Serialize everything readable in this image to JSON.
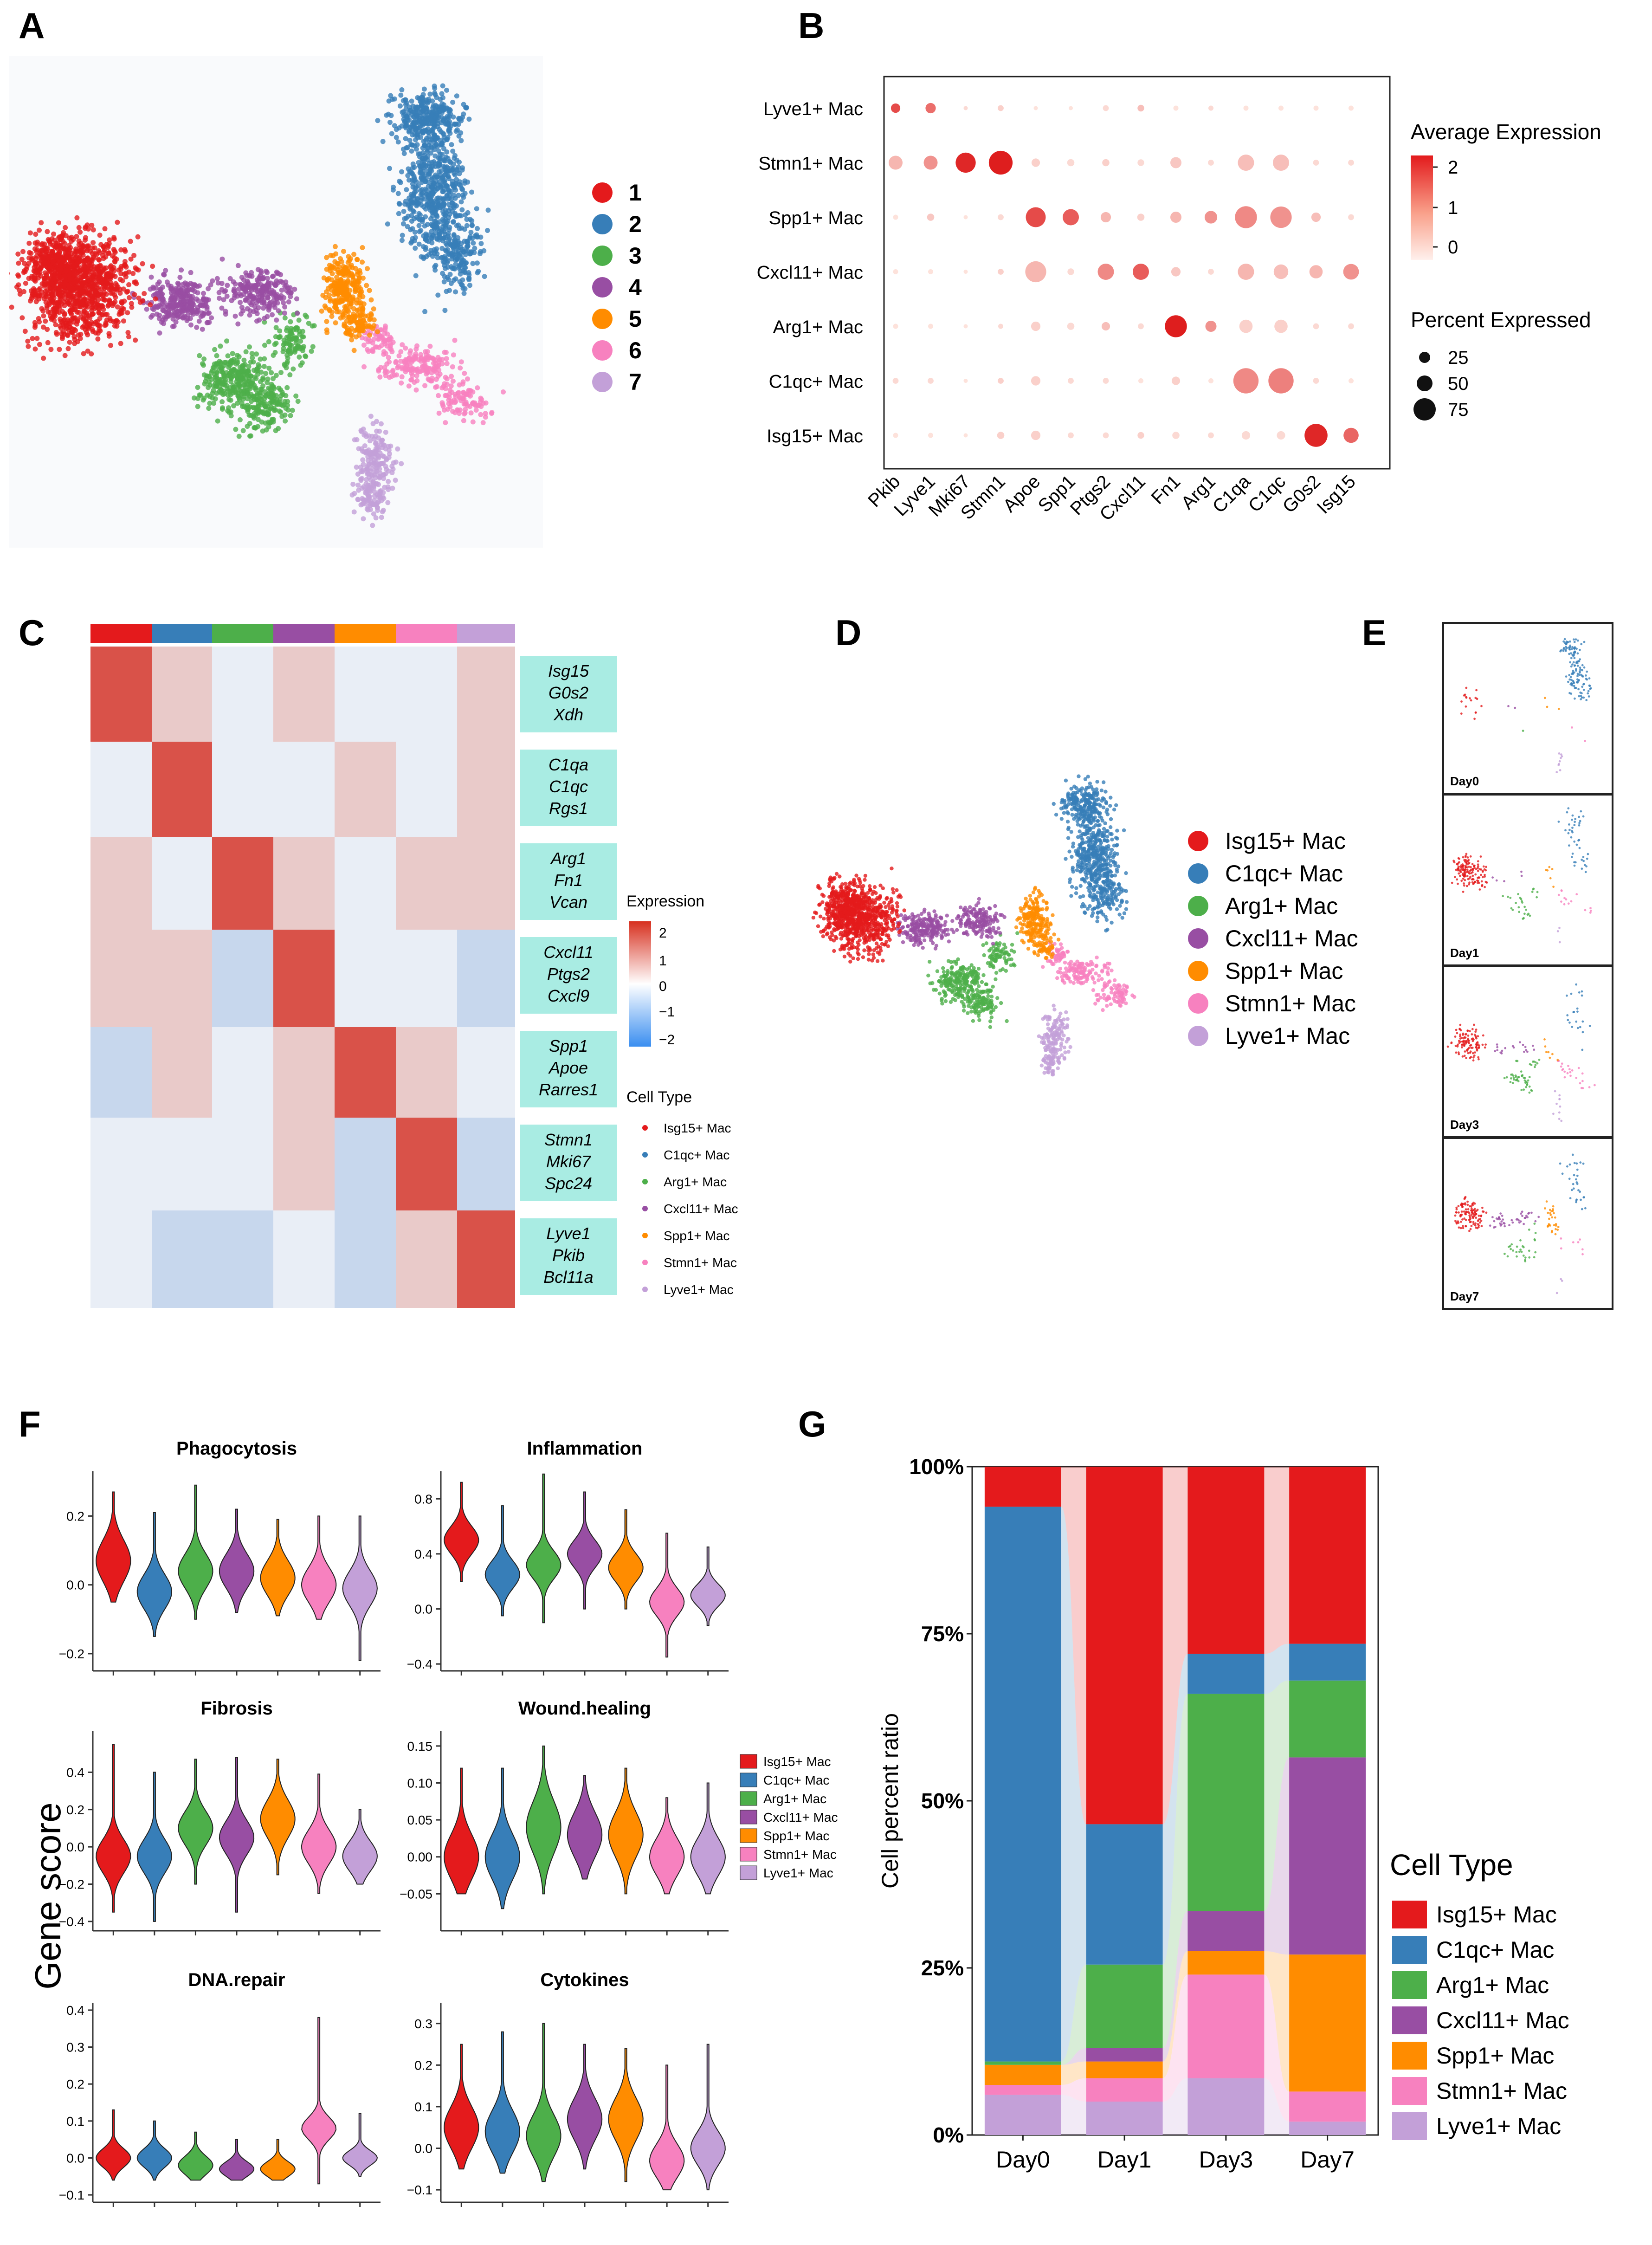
{
  "colors": {
    "Isg15": "#e41a1c",
    "C1qc": "#377eb8",
    "Arg1": "#4daf4a",
    "Cxcl11": "#984ea3",
    "Spp1": "#ff8c00",
    "Stmn1": "#f781bf",
    "Lyve1": "#c3a0d8",
    "cyan_box": "#a9ece3",
    "dot_high": "#e31a1c",
    "dot_low": "#fee5d9"
  },
  "cell_types": [
    "Isg15+ Mac",
    "C1qc+ Mac",
    "Arg1+ Mac",
    "Cxcl11+ Mac",
    "Spp1+ Mac",
    "Stmn1+ Mac",
    "Lyve1+ Mac"
  ],
  "panels": {
    "A": {
      "letter": "A",
      "legend": [
        "1",
        "2",
        "3",
        "4",
        "5",
        "6",
        "7"
      ]
    },
    "B": {
      "letter": "B",
      "genes": [
        "Pkib",
        "Lyve1",
        "Mki67",
        "Stmn1",
        "Apoe",
        "Spp1",
        "Ptgs2",
        "Cxcl11",
        "Fn1",
        "Arg1",
        "C1qa",
        "C1qc",
        "G0s2",
        "Isg15"
      ],
      "rows": [
        "Lyve1+ Mac",
        "Stmn1+ Mac",
        "Spp1+ Mac",
        "Cxcl11+ Mac",
        "Arg1+ Mac",
        "C1qc+ Mac",
        "Isg15+ Mac"
      ],
      "avg_expression_title": "Average Expression",
      "avg_expression_ticks": [
        "2",
        "1",
        "0"
      ],
      "percent_title": "Percent Expressed",
      "percent_ticks": [
        "25",
        "50",
        "75"
      ],
      "dots": [
        [
          [
            1.8,
            10
          ],
          [
            1.4,
            12
          ],
          [
            0.2,
            2
          ],
          [
            0.3,
            4
          ],
          [
            0.1,
            2
          ],
          [
            0.1,
            2
          ],
          [
            0.2,
            4
          ],
          [
            0.5,
            5
          ],
          [
            0.1,
            3
          ],
          [
            0.2,
            3
          ],
          [
            0.1,
            3
          ],
          [
            0.1,
            3
          ],
          [
            0.1,
            3
          ],
          [
            0.1,
            3
          ]
        ],
        [
          [
            0.6,
            22
          ],
          [
            1.0,
            22
          ],
          [
            2.2,
            46
          ],
          [
            2.3,
            64
          ],
          [
            0.3,
            8
          ],
          [
            0.2,
            6
          ],
          [
            0.3,
            6
          ],
          [
            0.2,
            5
          ],
          [
            0.4,
            14
          ],
          [
            0.2,
            4
          ],
          [
            0.5,
            30
          ],
          [
            0.5,
            30
          ],
          [
            0.2,
            4
          ],
          [
            0.2,
            4
          ]
        ],
        [
          [
            0.1,
            3
          ],
          [
            0.4,
            6
          ],
          [
            0.1,
            2
          ],
          [
            0.2,
            4
          ],
          [
            1.8,
            45
          ],
          [
            1.6,
            30
          ],
          [
            0.6,
            12
          ],
          [
            0.3,
            6
          ],
          [
            0.6,
            14
          ],
          [
            1.0,
            18
          ],
          [
            1.1,
            55
          ],
          [
            1.0,
            52
          ],
          [
            0.5,
            10
          ],
          [
            0.2,
            4
          ]
        ],
        [
          [
            0.1,
            3
          ],
          [
            0.1,
            3
          ],
          [
            0.1,
            2
          ],
          [
            0.3,
            4
          ],
          [
            0.6,
            50
          ],
          [
            0.2,
            5
          ],
          [
            1.1,
            30
          ],
          [
            1.6,
            30
          ],
          [
            0.4,
            10
          ],
          [
            0.2,
            4
          ],
          [
            0.6,
            30
          ],
          [
            0.5,
            24
          ],
          [
            0.6,
            20
          ],
          [
            1.0,
            28
          ]
        ],
        [
          [
            0.1,
            3
          ],
          [
            0.1,
            3
          ],
          [
            0.1,
            2
          ],
          [
            0.2,
            3
          ],
          [
            0.3,
            10
          ],
          [
            0.2,
            6
          ],
          [
            0.5,
            8
          ],
          [
            0.2,
            4
          ],
          [
            2.3,
            55
          ],
          [
            1.0,
            14
          ],
          [
            0.3,
            20
          ],
          [
            0.3,
            20
          ],
          [
            0.2,
            4
          ],
          [
            0.2,
            4
          ]
        ],
        [
          [
            0.2,
            4
          ],
          [
            0.2,
            4
          ],
          [
            0.1,
            2
          ],
          [
            0.3,
            4
          ],
          [
            0.3,
            10
          ],
          [
            0.2,
            4
          ],
          [
            0.2,
            4
          ],
          [
            0.1,
            3
          ],
          [
            0.3,
            8
          ],
          [
            0.1,
            3
          ],
          [
            1.1,
            72
          ],
          [
            1.2,
            72
          ],
          [
            0.2,
            4
          ],
          [
            0.1,
            3
          ]
        ],
        [
          [
            0.1,
            3
          ],
          [
            0.1,
            3
          ],
          [
            0.1,
            2
          ],
          [
            0.3,
            6
          ],
          [
            0.3,
            10
          ],
          [
            0.2,
            4
          ],
          [
            0.2,
            4
          ],
          [
            0.3,
            5
          ],
          [
            0.2,
            6
          ],
          [
            0.2,
            4
          ],
          [
            0.2,
            8
          ],
          [
            0.2,
            8
          ],
          [
            2.2,
            60
          ],
          [
            1.5,
            26
          ]
        ]
      ]
    },
    "C": {
      "letter": "C",
      "gene_boxes": [
        [
          "Isg15",
          "G0s2",
          "Xdh"
        ],
        [
          "C1qa",
          "C1qc",
          "Rgs1"
        ],
        [
          "Arg1",
          "Fn1",
          "Vcan"
        ],
        [
          "Cxcl11",
          "Ptgs2",
          "Cxcl9"
        ],
        [
          "Spp1",
          "Apoe",
          "Rarres1"
        ],
        [
          "Stmn1",
          "Mki67",
          "Spc24"
        ],
        [
          "Lyve1",
          "Pkib",
          "Bcl11a"
        ]
      ],
      "expression_title": "Expression",
      "expression_ticks": [
        "2",
        "1",
        "0",
        "−1",
        "−2"
      ],
      "celltype_title": "Cell Type"
    },
    "D": {
      "letter": "D"
    },
    "E": {
      "letter": "E",
      "days": [
        "Day0",
        "Day1",
        "Day3",
        "Day7"
      ]
    },
    "F": {
      "letter": "F",
      "ylabel": "Gene score",
      "plots": [
        {
          "title": "Phagocytosis",
          "ticks": [
            "0.2",
            "0.0",
            "−0.2"
          ],
          "tick_values": [
            0.2,
            0.0,
            -0.2
          ],
          "ymin": -0.25,
          "ymax": 0.33,
          "violins": [
            [
              0.07,
              -0.05,
              0.27,
              0.06
            ],
            [
              -0.02,
              -0.15,
              0.21,
              0.05
            ],
            [
              0.04,
              -0.1,
              0.29,
              0.05
            ],
            [
              0.04,
              -0.08,
              0.22,
              0.05
            ],
            [
              0.02,
              -0.09,
              0.19,
              0.05
            ],
            [
              0.0,
              -0.1,
              0.2,
              0.05
            ],
            [
              -0.01,
              -0.22,
              0.2,
              0.05
            ]
          ]
        },
        {
          "title": "Inflammation",
          "ticks": [
            "0.8",
            "0.4",
            "0.0",
            "−0.4"
          ],
          "tick_values": [
            0.8,
            0.4,
            0.0,
            -0.4
          ],
          "ymin": -0.45,
          "ymax": 1.0,
          "violins": [
            [
              0.5,
              0.2,
              0.92,
              0.1
            ],
            [
              0.25,
              -0.05,
              0.75,
              0.1
            ],
            [
              0.32,
              -0.1,
              0.98,
              0.1
            ],
            [
              0.4,
              0.0,
              0.85,
              0.1
            ],
            [
              0.3,
              0.0,
              0.72,
              0.1
            ],
            [
              0.05,
              -0.35,
              0.55,
              0.1
            ],
            [
              0.1,
              -0.12,
              0.45,
              0.08
            ]
          ]
        },
        {
          "title": "Fibrosis",
          "ticks": [
            "0.4",
            "0.2",
            "0.0",
            "−0.2",
            "−0.4"
          ],
          "tick_values": [
            0.4,
            0.2,
            0.0,
            -0.2,
            -0.4
          ],
          "ymin": -0.45,
          "ymax": 0.62,
          "violins": [
            [
              -0.05,
              -0.35,
              0.55,
              0.09
            ],
            [
              -0.05,
              -0.4,
              0.4,
              0.09
            ],
            [
              0.1,
              -0.2,
              0.47,
              0.09
            ],
            [
              0.05,
              -0.35,
              0.48,
              0.09
            ],
            [
              0.15,
              -0.15,
              0.47,
              0.1
            ],
            [
              0.0,
              -0.25,
              0.39,
              0.09
            ],
            [
              -0.05,
              -0.2,
              0.2,
              0.08
            ]
          ]
        },
        {
          "title": "Wound.healing",
          "ticks": [
            "0.15",
            "0.10",
            "0.05",
            "0.00",
            "−0.05"
          ],
          "tick_values": [
            0.15,
            0.1,
            0.05,
            0.0,
            -0.05
          ],
          "ymin": -0.1,
          "ymax": 0.17,
          "violins": [
            [
              0.0,
              -0.05,
              0.12,
              0.03
            ],
            [
              0.0,
              -0.07,
              0.12,
              0.03
            ],
            [
              0.04,
              -0.05,
              0.15,
              0.035
            ],
            [
              0.03,
              -0.03,
              0.11,
              0.03
            ],
            [
              0.03,
              -0.05,
              0.12,
              0.03
            ],
            [
              0.0,
              -0.05,
              0.08,
              0.025
            ],
            [
              0.0,
              -0.05,
              0.1,
              0.025
            ]
          ]
        },
        {
          "title": "DNA.repair",
          "ticks": [
            "0.4",
            "0.3",
            "0.2",
            "0.1",
            "0.0",
            "−0.1"
          ],
          "tick_values": [
            0.4,
            0.3,
            0.2,
            0.1,
            0.0,
            -0.1
          ],
          "ymin": -0.12,
          "ymax": 0.42,
          "violins": [
            [
              0.0,
              -0.06,
              0.13,
              0.025
            ],
            [
              0.0,
              -0.06,
              0.1,
              0.025
            ],
            [
              -0.02,
              -0.06,
              0.07,
              0.025
            ],
            [
              -0.03,
              -0.06,
              0.05,
              0.02
            ],
            [
              -0.03,
              -0.06,
              0.05,
              0.02
            ],
            [
              0.08,
              -0.07,
              0.38,
              0.03
            ],
            [
              0.0,
              -0.05,
              0.12,
              0.02
            ]
          ]
        },
        {
          "title": "Cytokines",
          "ticks": [
            "0.3",
            "0.2",
            "0.1",
            "0.0",
            "−0.1"
          ],
          "tick_values": [
            0.3,
            0.2,
            0.1,
            0.0,
            -0.1
          ],
          "ymin": -0.13,
          "ymax": 0.35,
          "violins": [
            [
              0.05,
              -0.05,
              0.25,
              0.05
            ],
            [
              0.04,
              -0.06,
              0.28,
              0.05
            ],
            [
              0.03,
              -0.08,
              0.3,
              0.05
            ],
            [
              0.07,
              -0.05,
              0.25,
              0.05
            ],
            [
              0.07,
              -0.08,
              0.24,
              0.05
            ],
            [
              -0.03,
              -0.1,
              0.2,
              0.04
            ],
            [
              0.0,
              -0.1,
              0.25,
              0.04
            ]
          ]
        }
      ]
    },
    "G": {
      "letter": "G",
      "ylabel": "Cell percent ratio",
      "ticks": [
        "0%",
        "25%",
        "50%",
        "75%",
        "100%"
      ],
      "legend_title": "Cell Type"
    }
  },
  "chart_data": [
    {
      "type": "heatmap",
      "panel": "B",
      "title": "",
      "x": [
        "Pkib",
        "Lyve1",
        "Mki67",
        "Stmn1",
        "Apoe",
        "Spp1",
        "Ptgs2",
        "Cxcl11",
        "Fn1",
        "Arg1",
        "C1qa",
        "C1qc",
        "G0s2",
        "Isg15"
      ],
      "y": [
        "Lyve1+ Mac",
        "Stmn1+ Mac",
        "Spp1+ Mac",
        "Cxcl11+ Mac",
        "Arg1+ Mac",
        "C1qc+ Mac",
        "Isg15+ Mac"
      ],
      "color": "Average Expression",
      "size": "Percent Expressed"
    },
    {
      "type": "bar",
      "panel": "G",
      "categories": [
        "Day0",
        "Day1",
        "Day3",
        "Day7"
      ],
      "series": [
        {
          "name": "Lyve1+ Mac",
          "values": [
            6,
            5,
            8.5,
            2
          ]
        },
        {
          "name": "Stmn1+ Mac",
          "values": [
            1.5,
            3.5,
            15.5,
            4.5
          ]
        },
        {
          "name": "Spp1+ Mac",
          "values": [
            3,
            2.5,
            3.5,
            20.5
          ]
        },
        {
          "name": "Cxcl11+ Mac",
          "values": [
            0,
            2,
            6,
            29.5
          ]
        },
        {
          "name": "Arg1+ Mac",
          "values": [
            0.5,
            12.5,
            32.5,
            11.5
          ]
        },
        {
          "name": "C1qc+ Mac",
          "values": [
            83,
            21,
            6,
            5.5
          ]
        },
        {
          "name": "Isg15+ Mac",
          "values": [
            6,
            53.5,
            28,
            26.5
          ]
        }
      ],
      "ylabel": "Cell percent ratio",
      "ylim": [
        0,
        100
      ],
      "stacked": true
    }
  ]
}
